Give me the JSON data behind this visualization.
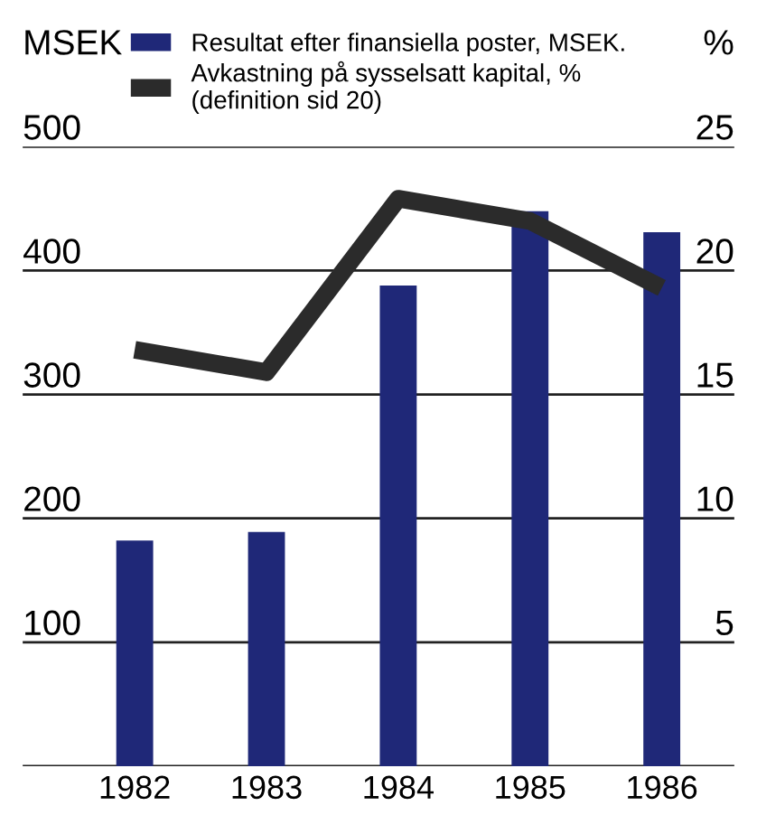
{
  "chart_data": {
    "type": "bar",
    "categories": [
      "1982",
      "1983",
      "1984",
      "1985",
      "1986"
    ],
    "series": [
      {
        "name": "Resultat efter finansiella poster, MSEK.",
        "color": "#1f2878",
        "values": [
          182,
          189,
          388,
          448,
          431
        ]
      },
      {
        "name": "Avkastning på sysselsatt kapital, %\n(definition sid 20)",
        "type": "line",
        "axis": "y2",
        "color": "#2b2b2b",
        "values": [
          16.8,
          15.9,
          22.9,
          22.0,
          19.3
        ]
      }
    ],
    "ylabel": "MSEK",
    "y2label": "%",
    "ylim": [
      0,
      500
    ],
    "yticks": [
      {
        "value": 0,
        "label": null
      },
      100,
      200,
      300,
      400,
      500
    ],
    "y2lim": [
      0,
      25
    ],
    "y2ticks": [
      {
        "value": 0,
        "label": null
      },
      5,
      10,
      15,
      20,
      25
    ],
    "grid": "y",
    "legend": "top",
    "marker": "none",
    "line_style": "solid"
  }
}
